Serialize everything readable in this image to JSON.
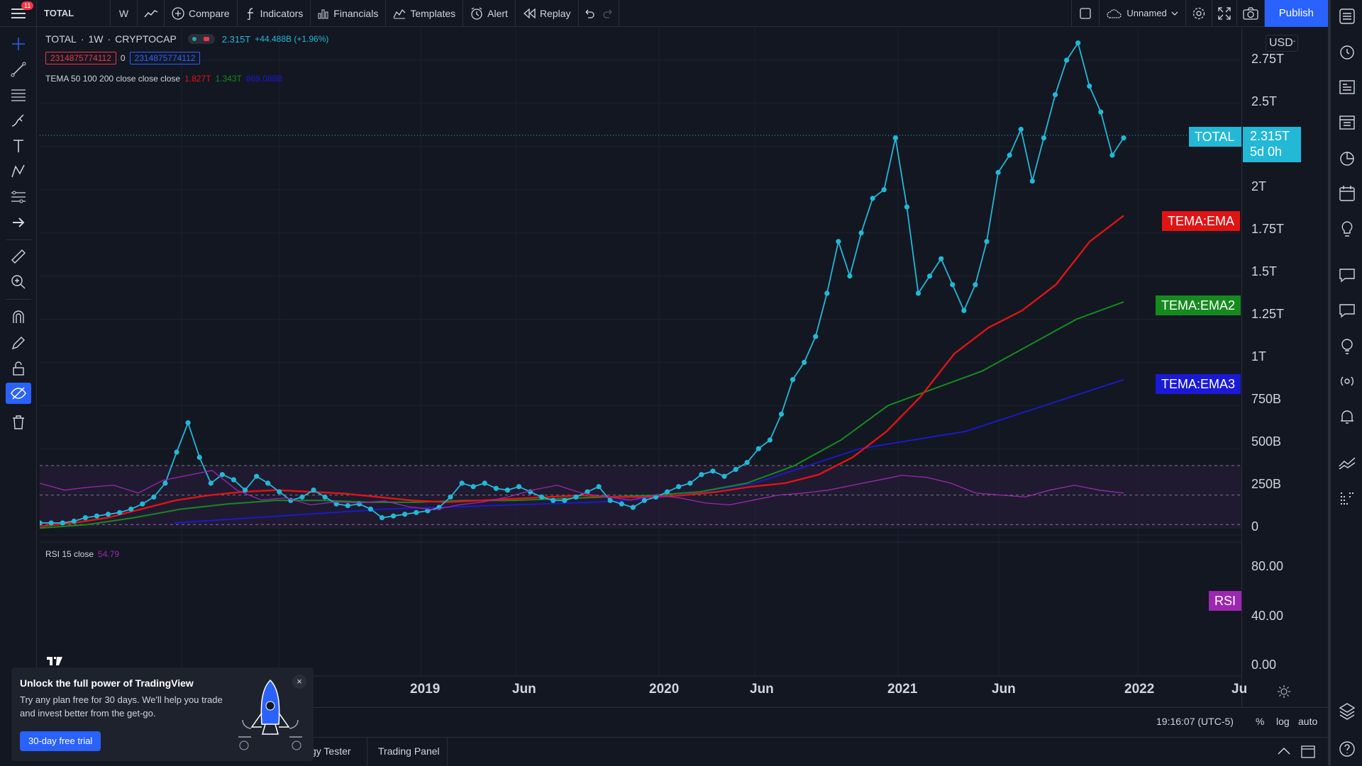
{
  "toolbar": {
    "symbol": "TOTAL",
    "interval": "W",
    "compare": "Compare",
    "indicators": "Indicators",
    "financials": "Financials",
    "templates": "Templates",
    "alert": "Alert",
    "replay": "Replay",
    "layout_name": "Unnamed",
    "publish": "Publish",
    "notification_count": "11"
  },
  "legend": {
    "symbol": "TOTAL",
    "interval": "1W",
    "exchange": "CRYPTOCAP",
    "price": "2.315T",
    "change": "+44.488B (+1.96%)",
    "bid": "2314875774112",
    "spread": "0",
    "ask": "2314875774112",
    "tema_name": "TEMA 50 100 200 close close close",
    "tema_v1": "1.827T",
    "tema_v2": "1.343T",
    "tema_v3": "869.088B",
    "rsi_name": "RSI 15 close",
    "rsi_value": "54.79"
  },
  "price_axis": {
    "currency": "USD",
    "ticks": [
      "2.75T",
      "2.5T",
      "2T",
      "1.75T",
      "1.5T",
      "1.25T",
      "1T",
      "750B",
      "500B",
      "250B",
      "0"
    ],
    "rsi_ticks": [
      "80.00",
      "40.00",
      "0.00"
    ]
  },
  "tags": {
    "total_label": "TOTAL",
    "total_price": "2.315T",
    "countdown": "5d 0h",
    "ema1": "TEMA:EMA",
    "ema2": "TEMA:EMA2",
    "ema3": "TEMA:EMA3",
    "rsi": "RSI"
  },
  "time_axis": {
    "labels": [
      "2019",
      "Jun",
      "2020",
      "Jun",
      "2021",
      "Jun",
      "2022",
      "Ju"
    ]
  },
  "status": {
    "clock": "19:16:07 (UTC-5)",
    "percent": "%",
    "log": "log",
    "auto": "auto"
  },
  "bottom_tabs": [
    "gy Tester",
    "Trading Panel"
  ],
  "promo": {
    "title": "Unlock the full power of TradingView",
    "text_line1": "Try any plan free for 30 days. We'll help you trade",
    "text_line2": "and invest better from the get-go.",
    "button": "30-day free trial"
  },
  "colors": {
    "background": "#131722",
    "price_line": "#22b8d6",
    "ema1": "#e01414",
    "ema2": "#168a1e",
    "ema3": "#1a1ad6",
    "rsi": "#9c27b0",
    "accent": "#2962ff"
  },
  "chart_data": {
    "type": "line",
    "x_range": [
      "2017-12",
      "2022-02"
    ],
    "y_range_T": [
      0,
      2.9
    ],
    "price_T": [
      0.07,
      0.07,
      0.07,
      0.08,
      0.1,
      0.11,
      0.12,
      0.13,
      0.15,
      0.18,
      0.22,
      0.3,
      0.48,
      0.65,
      0.45,
      0.3,
      0.35,
      0.32,
      0.26,
      0.34,
      0.3,
      0.25,
      0.2,
      0.22,
      0.26,
      0.22,
      0.18,
      0.17,
      0.18,
      0.15,
      0.1,
      0.11,
      0.12,
      0.13,
      0.14,
      0.16,
      0.22,
      0.3,
      0.28,
      0.3,
      0.27,
      0.26,
      0.28,
      0.25,
      0.22,
      0.2,
      0.2,
      0.22,
      0.25,
      0.28,
      0.2,
      0.18,
      0.16,
      0.2,
      0.22,
      0.25,
      0.28,
      0.3,
      0.35,
      0.37,
      0.34,
      0.38,
      0.42,
      0.5,
      0.55,
      0.7,
      0.9,
      1.0,
      1.15,
      1.4,
      1.7,
      1.5,
      1.75,
      1.95,
      2.0,
      2.3,
      1.9,
      1.4,
      1.5,
      1.6,
      1.45,
      1.3,
      1.45,
      1.7,
      2.1,
      2.2,
      2.35,
      2.05,
      2.3,
      2.55,
      2.75,
      2.85,
      2.6,
      2.45,
      2.2,
      2.3
    ],
    "tema_ema1_T": [
      0.05,
      0.07,
      0.1,
      0.15,
      0.2,
      0.23,
      0.25,
      0.26,
      0.25,
      0.24,
      0.22,
      0.2,
      0.19,
      0.2,
      0.21,
      0.22,
      0.23,
      0.22,
      0.22,
      0.23,
      0.25,
      0.28,
      0.3,
      0.35,
      0.45,
      0.6,
      0.8,
      1.05,
      1.2,
      1.3,
      1.45,
      1.7,
      1.85
    ],
    "tema_ema2_T": [
      0.04,
      0.06,
      0.1,
      0.15,
      0.18,
      0.2,
      0.2,
      0.19,
      0.19,
      0.2,
      0.2,
      0.21,
      0.22,
      0.23,
      0.25,
      0.3,
      0.4,
      0.55,
      0.75,
      0.85,
      0.95,
      1.1,
      1.25,
      1.35
    ],
    "tema_ema3_T": [
      0.07,
      0.09,
      0.11,
      0.13,
      0.15,
      0.16,
      0.17,
      0.18,
      0.19,
      0.21,
      0.25,
      0.3,
      0.4,
      0.5,
      0.55,
      0.6,
      0.7,
      0.8,
      0.9
    ],
    "rsi": [
      62,
      55,
      58,
      60,
      52,
      65,
      70,
      75,
      55,
      45,
      47,
      40,
      43,
      42,
      44,
      38,
      35,
      40,
      43,
      48,
      55,
      60,
      52,
      48,
      45,
      50,
      47,
      42,
      40,
      45,
      50,
      52,
      55,
      60,
      65,
      70,
      68,
      62,
      52,
      50,
      48,
      55,
      60,
      55,
      52
    ]
  }
}
